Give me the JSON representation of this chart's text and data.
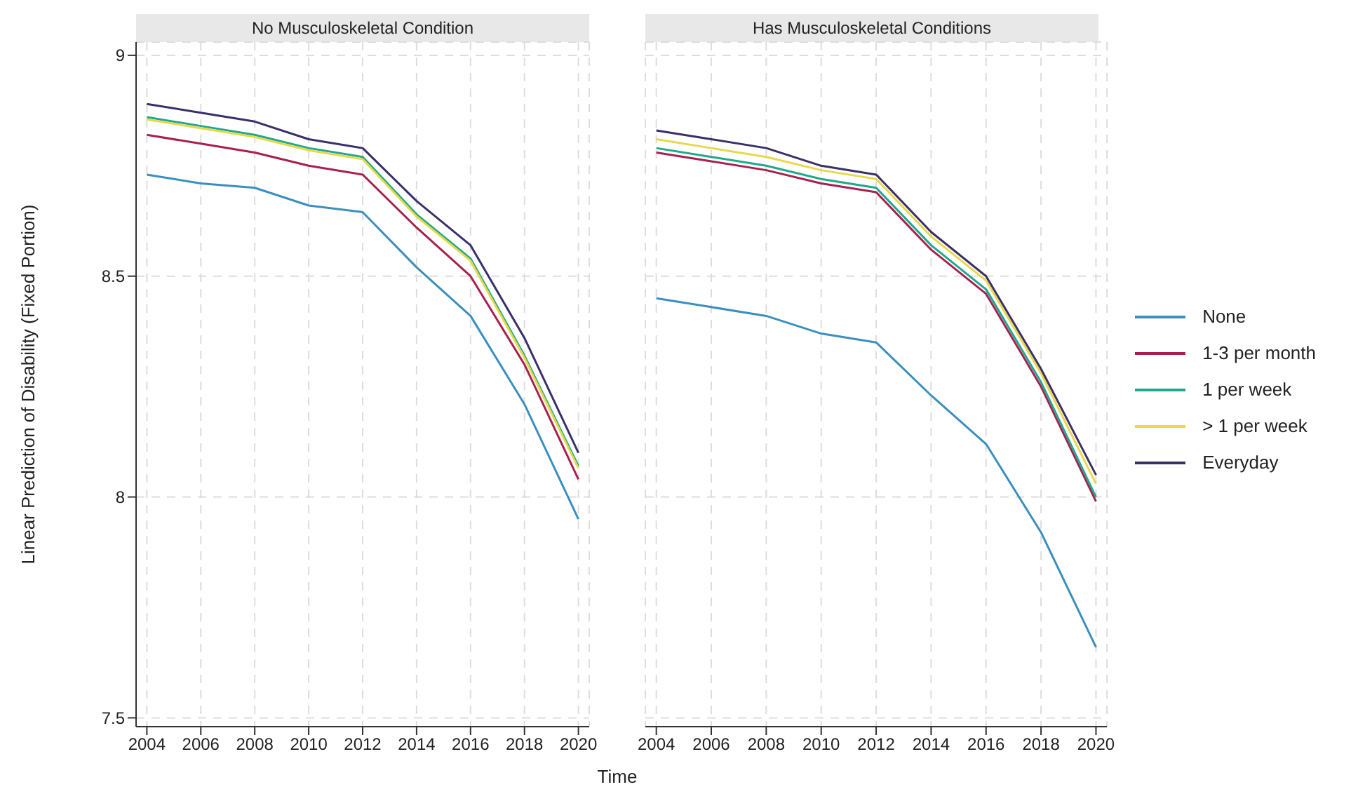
{
  "chart_data": [
    {
      "type": "line",
      "title": "No Musculoskeletal Condition",
      "xlabel": "Time",
      "ylabel": "Linear Prediction of Disability (Fixed Portion)",
      "x": [
        2004,
        2006,
        2008,
        2010,
        2012,
        2014,
        2016,
        2018,
        2020
      ],
      "xlim": [
        2003.6,
        2020.4
      ],
      "xticks": [
        2004,
        2006,
        2008,
        2010,
        2012,
        2014,
        2016,
        2018,
        2020
      ],
      "ylim": [
        7.48,
        9.03
      ],
      "yticks": [
        7.5,
        8,
        8.5,
        9
      ],
      "grid": true,
      "legend": false,
      "marker": "none",
      "line_style": "solid",
      "series": [
        {
          "color": "#3a8fbf",
          "values": [
            8.73,
            8.71,
            8.7,
            8.66,
            8.645,
            8.52,
            8.41,
            8.21,
            7.95
          ]
        },
        {
          "color": "#a8204f",
          "values": [
            8.82,
            8.8,
            8.78,
            8.75,
            8.73,
            8.61,
            8.5,
            8.3,
            8.04
          ]
        },
        {
          "color": "#1fa88a",
          "values": [
            8.86,
            8.84,
            8.82,
            8.79,
            8.77,
            8.64,
            8.54,
            8.32,
            8.07
          ]
        },
        {
          "color": "#e8d84a",
          "values": [
            8.855,
            8.835,
            8.815,
            8.785,
            8.765,
            8.635,
            8.535,
            8.315,
            8.065
          ]
        },
        {
          "color": "#3a2f6b",
          "values": [
            8.89,
            8.87,
            8.85,
            8.81,
            8.79,
            8.67,
            8.57,
            8.36,
            8.1
          ]
        }
      ]
    },
    {
      "type": "line",
      "title": "Has Musculoskeletal Conditions",
      "x": [
        2004,
        2006,
        2008,
        2010,
        2012,
        2014,
        2016,
        2018,
        2020
      ],
      "xlim": [
        2003.6,
        2020.4
      ],
      "xticks": [
        2004,
        2006,
        2008,
        2010,
        2012,
        2014,
        2016,
        2018,
        2020
      ],
      "ylim": [
        7.48,
        9.03
      ],
      "yticks": [
        7.5,
        8,
        8.5,
        9
      ],
      "tick_labels": "x",
      "grid": true,
      "legend": "right",
      "marker": "none",
      "line_style": "solid",
      "series": [
        {
          "name": "None",
          "color": "#3a8fbf",
          "values": [
            8.45,
            8.43,
            8.41,
            8.37,
            8.35,
            8.23,
            8.12,
            7.92,
            7.66
          ]
        },
        {
          "name": "1-3 per month",
          "color": "#a8204f",
          "values": [
            8.78,
            8.76,
            8.74,
            8.71,
            8.69,
            8.56,
            8.46,
            8.25,
            7.99
          ]
        },
        {
          "name": "1 per week",
          "color": "#1fa88a",
          "values": [
            8.79,
            8.77,
            8.75,
            8.72,
            8.7,
            8.57,
            8.47,
            8.26,
            8.0
          ]
        },
        {
          "name": "> 1 per week",
          "color": "#e8d84a",
          "values": [
            8.81,
            8.79,
            8.77,
            8.74,
            8.72,
            8.59,
            8.49,
            8.28,
            8.03
          ]
        },
        {
          "name": "Everyday",
          "color": "#3a2f6b",
          "values": [
            8.83,
            8.81,
            8.79,
            8.75,
            8.73,
            8.6,
            8.5,
            8.29,
            8.05
          ]
        }
      ]
    }
  ]
}
